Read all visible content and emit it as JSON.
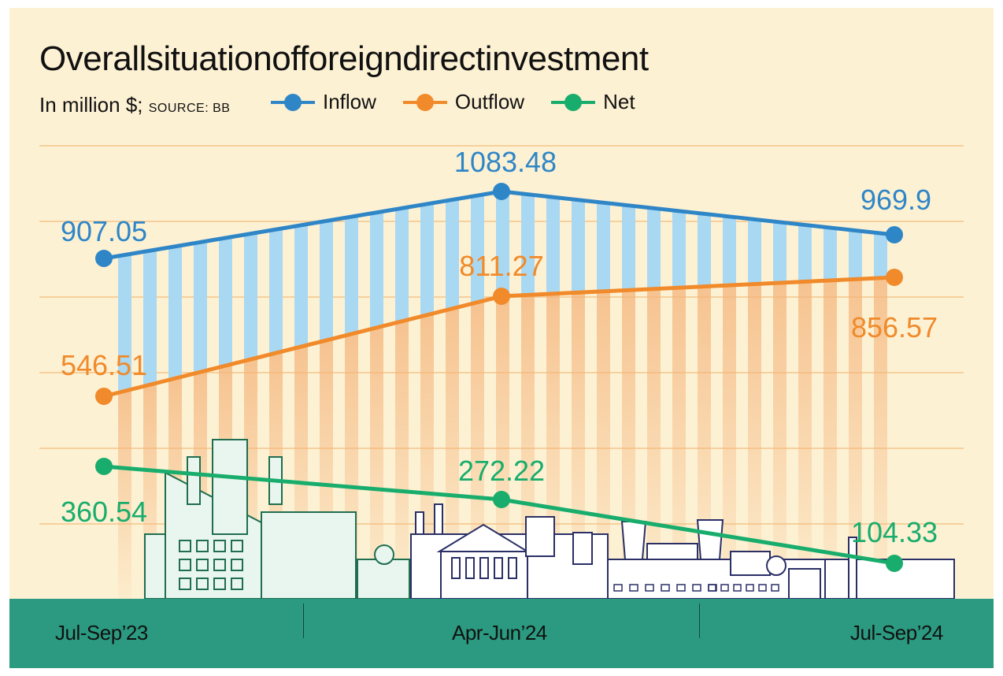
{
  "title": "Overallsituationofforeigndirectinvestment",
  "subtitle": {
    "unit": "In million $;",
    "source": "SOURCE: BB"
  },
  "colors": {
    "inflow": "#2f86c7",
    "outflow": "#f08a2a",
    "net": "#18ad6c",
    "background": "#fdf1d4",
    "axis_band": "#2b9a80",
    "grid": "#f3c58a"
  },
  "chart_data": {
    "type": "line",
    "x": [
      "Jul-Sep'23",
      "Apr-Jun'24",
      "Jul-Sep'24"
    ],
    "series": [
      {
        "name": "Inflow",
        "values": [
          907.05,
          1083.48,
          969.9
        ],
        "labels": [
          "907.05",
          "1083.48",
          "969.9"
        ]
      },
      {
        "name": "Outflow",
        "values": [
          546.51,
          811.27,
          856.57
        ],
        "labels": [
          "546.51",
          "811.27",
          "856.57"
        ]
      },
      {
        "name": "Net",
        "values": [
          360.54,
          272.22,
          104.33
        ],
        "labels": [
          "360.54",
          "272.22",
          "104.33"
        ]
      }
    ],
    "ylim": [
      0,
      1200
    ],
    "grid": true,
    "legend": "top-left",
    "xlabel": "",
    "ylabel": ""
  },
  "x_axis_labels": [
    "Jul-Sep’23",
    "Apr-Jun’24",
    "Jul-Sep’24"
  ]
}
